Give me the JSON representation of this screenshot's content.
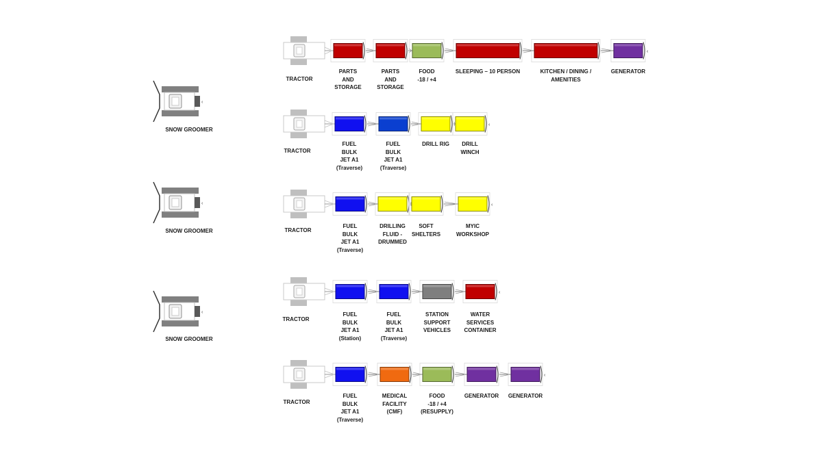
{
  "colors": {
    "red": "#c00000",
    "green": "#9bbb59",
    "blue": "#1010f0",
    "blue_dark": "#0a3fd0",
    "yellow": "#ffff00",
    "gray": "#7f7f7f",
    "orange": "#f06a10",
    "purple": "#7030a0"
  },
  "groomers": [
    {
      "label": "SNOW GROOMER"
    },
    {
      "label": "SNOW GROOMER"
    },
    {
      "label": "SNOW GROOMER"
    }
  ],
  "trains": [
    {
      "tractor_label": "TRACTOR",
      "units": [
        {
          "label": "PARTS\nAND\nSTORAGE",
          "color": "red",
          "size": "small"
        },
        {
          "label": "PARTS\nAND\nSTORAGE",
          "color": "red",
          "size": "small"
        },
        {
          "label": "FOOD\n-18 / +4",
          "color": "green",
          "size": "small"
        },
        {
          "label": "SLEEPING – 10 PERSON",
          "color": "red",
          "size": "large"
        },
        {
          "label": "KITCHEN / DINING /\nAMENITIES",
          "color": "red",
          "size": "large"
        },
        {
          "label": "GENERATOR",
          "color": "purple",
          "size": "small"
        }
      ]
    },
    {
      "tractor_label": "TRACTOR",
      "units": [
        {
          "label": "FUEL\nBULK\nJET A1\n(Traverse)",
          "color": "blue",
          "size": "small"
        },
        {
          "label": "FUEL\nBULK\nJET A1\n(Traverse)",
          "color": "blue_dark",
          "size": "small"
        },
        {
          "label": "DRILL RIG",
          "color": "yellow",
          "size": "small"
        },
        {
          "label": "DRILL\nWINCH",
          "color": "yellow",
          "size": "small"
        }
      ]
    },
    {
      "tractor_label": "TRACTOR",
      "units": [
        {
          "label": "FUEL\nBULK\nJET A1\n(Traverse)",
          "color": "blue",
          "size": "small"
        },
        {
          "label": "DRILLING\nFLUID -\nDRUMMED",
          "color": "yellow",
          "size": "small"
        },
        {
          "label": "SOFT\nSHELTERS",
          "color": "yellow",
          "size": "small"
        },
        {
          "label": "MYIC\nWORKSHOP",
          "color": "yellow",
          "size": "small"
        }
      ]
    },
    {
      "tractor_label": "TRACTOR",
      "units": [
        {
          "label": "FUEL\nBULK\nJET A1\n(Station)",
          "color": "blue",
          "size": "small"
        },
        {
          "label": "FUEL\nBULK\nJET A1\n(Traverse)",
          "color": "blue",
          "size": "small"
        },
        {
          "label": "STATION\nSUPPORT\nVEHICLES",
          "color": "gray",
          "size": "small"
        },
        {
          "label": "WATER\nSERVICES\nCONTAINER",
          "color": "red",
          "size": "small"
        }
      ]
    },
    {
      "tractor_label": "TRACTOR",
      "units": [
        {
          "label": "FUEL\nBULK\nJET A1\n(Traverse)",
          "color": "blue",
          "size": "small"
        },
        {
          "label": "MEDICAL\nFACILITY\n(CMF)",
          "color": "orange",
          "size": "small"
        },
        {
          "label": "FOOD\n-18 / +4\n(RESUPPLY)",
          "color": "green",
          "size": "small"
        },
        {
          "label": "GENERATOR",
          "color": "purple",
          "size": "small"
        },
        {
          "label": "GENERATOR",
          "color": "purple",
          "size": "small"
        }
      ]
    }
  ]
}
